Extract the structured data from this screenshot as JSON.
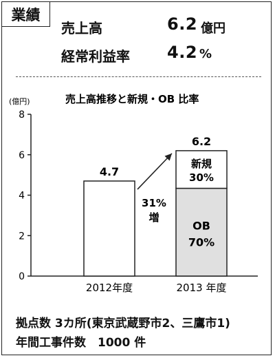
{
  "header": {
    "badge": "業績",
    "sales_label": "売上高",
    "sales_value": "6.2",
    "sales_unit": "億円",
    "profit_label": "経常利益率",
    "profit_value": "4.2",
    "profit_unit": "%"
  },
  "chart_data": {
    "type": "bar",
    "title": "売上高推移と新規・OB 比率",
    "unit_label": "(億円)",
    "ylim": [
      0,
      8
    ],
    "yticks": [
      "0",
      "2",
      "4",
      "6",
      "8"
    ],
    "categories": [
      "2012年度",
      "2013 年度"
    ],
    "values": [
      4.7,
      6.2
    ],
    "value_labels": [
      "4.7",
      "6.2"
    ],
    "stack_2013": [
      {
        "name": "OB",
        "share_label": "70%",
        "share": 0.7,
        "color": "#e0e0e0"
      },
      {
        "name": "新規",
        "share_label": "30%",
        "share": 0.3,
        "color": "#ffffff"
      }
    ],
    "growth_label_1": "31%",
    "growth_label_2": "増"
  },
  "footer": {
    "line1": "拠点数 3カ所(東京武蔵野市2、三鷹市1)",
    "line2": "年間工事件数　1000 件"
  }
}
